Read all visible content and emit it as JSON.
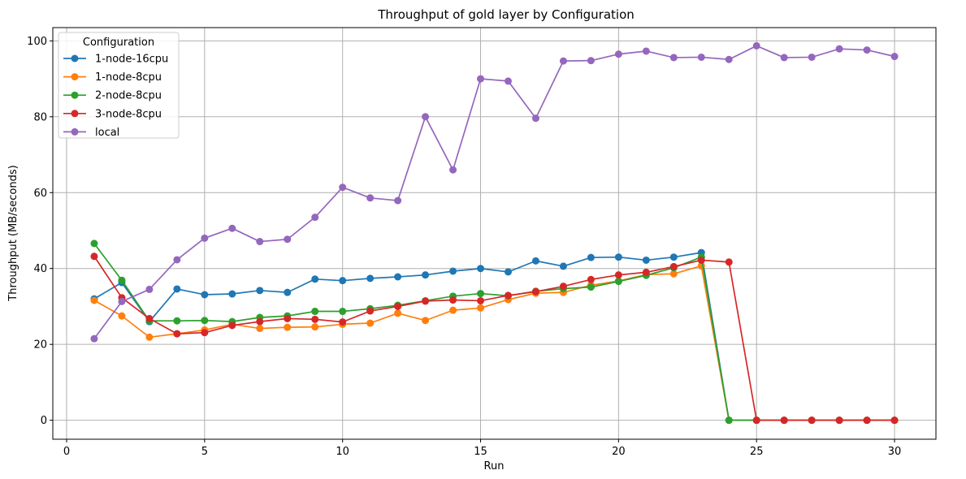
{
  "chart_data": {
    "type": "line",
    "title": "Throughput of gold layer by Configuration",
    "xlabel": "Run",
    "ylabel": "Throughput (MB/seconds)",
    "xlim": [
      -0.5,
      31.5
    ],
    "ylim": [
      -5.0,
      103.5
    ],
    "xticks": [
      0,
      5,
      10,
      15,
      20,
      25,
      30
    ],
    "yticks": [
      0,
      20,
      40,
      60,
      80,
      100
    ],
    "grid": true,
    "legend_title": "Configuration",
    "legend_position": "top-left",
    "series": [
      {
        "name": "1-node-16cpu",
        "color": "#1f77b4",
        "x": [
          1,
          2,
          3,
          4,
          5,
          6,
          7,
          8,
          9,
          10,
          11,
          12,
          13,
          14,
          15,
          16,
          17,
          18,
          19,
          20,
          21,
          22,
          23,
          24,
          25,
          26,
          27,
          28,
          29,
          30
        ],
        "values": [
          32.0,
          36.3,
          26.0,
          34.6,
          33.1,
          33.3,
          34.2,
          33.7,
          37.2,
          36.8,
          37.4,
          37.8,
          38.3,
          39.3,
          40.0,
          39.1,
          42.0,
          40.6,
          42.9,
          43.0,
          42.2,
          43.0,
          44.2,
          0,
          0,
          0,
          0,
          0,
          0,
          0
        ]
      },
      {
        "name": "1-node-8cpu",
        "color": "#ff7f0e",
        "x": [
          1,
          2,
          3,
          4,
          5,
          6,
          7,
          8,
          9,
          10,
          11,
          12,
          13,
          14,
          15,
          16,
          17,
          18,
          19,
          20,
          21,
          22,
          23,
          24,
          25,
          26,
          27,
          28,
          29,
          30
        ],
        "values": [
          31.6,
          27.5,
          21.9,
          22.8,
          23.8,
          25.3,
          24.2,
          24.5,
          24.6,
          25.3,
          25.6,
          28.2,
          26.3,
          29.0,
          29.6,
          31.8,
          33.5,
          33.7,
          35.6,
          36.7,
          38.4,
          38.6,
          40.7,
          0,
          0,
          0,
          0,
          0,
          0,
          0
        ]
      },
      {
        "name": "2-node-8cpu",
        "color": "#2ca02c",
        "x": [
          1,
          2,
          3,
          4,
          5,
          6,
          7,
          8,
          9,
          10,
          11,
          12,
          13,
          14,
          15,
          16,
          17,
          18,
          19,
          20,
          21,
          22,
          23,
          24,
          25,
          26,
          27,
          28,
          29,
          30
        ],
        "values": [
          46.6,
          36.9,
          26.2,
          26.2,
          26.3,
          26.0,
          27.1,
          27.5,
          28.7,
          28.7,
          29.4,
          30.3,
          31.5,
          32.7,
          33.4,
          32.8,
          34.0,
          34.7,
          35.1,
          36.6,
          38.2,
          40.2,
          43.0,
          0,
          0,
          0,
          0,
          0,
          0,
          0
        ]
      },
      {
        "name": "3-node-8cpu",
        "color": "#d62728",
        "x": [
          1,
          2,
          3,
          4,
          5,
          6,
          7,
          8,
          9,
          10,
          11,
          12,
          13,
          14,
          15,
          16,
          17,
          18,
          19,
          20,
          21,
          22,
          23,
          24,
          25,
          26,
          27,
          28,
          29,
          30
        ],
        "values": [
          43.2,
          32.3,
          26.8,
          22.8,
          23.1,
          25.0,
          26.0,
          26.8,
          26.6,
          25.9,
          28.8,
          30.0,
          31.4,
          31.7,
          31.5,
          32.9,
          33.9,
          35.3,
          37.1,
          38.3,
          39.0,
          40.5,
          42.2,
          41.7,
          0,
          0,
          0,
          0,
          0,
          0
        ]
      },
      {
        "name": "local",
        "color": "#9467bd",
        "x": [
          1,
          2,
          3,
          4,
          5,
          6,
          7,
          8,
          9,
          10,
          11,
          12,
          13,
          14,
          15,
          16,
          17,
          18,
          19,
          20,
          21,
          22,
          23,
          24,
          25,
          26,
          27,
          28,
          29,
          30
        ],
        "values": [
          21.5,
          31.3,
          34.5,
          42.3,
          48.0,
          50.6,
          47.1,
          47.7,
          53.5,
          61.4,
          58.6,
          57.9,
          80.0,
          66.0,
          90.0,
          89.4,
          79.6,
          94.7,
          94.8,
          96.5,
          97.3,
          95.6,
          95.7,
          95.1,
          98.7,
          95.6,
          95.7,
          97.9,
          97.6,
          95.9
        ]
      }
    ]
  }
}
